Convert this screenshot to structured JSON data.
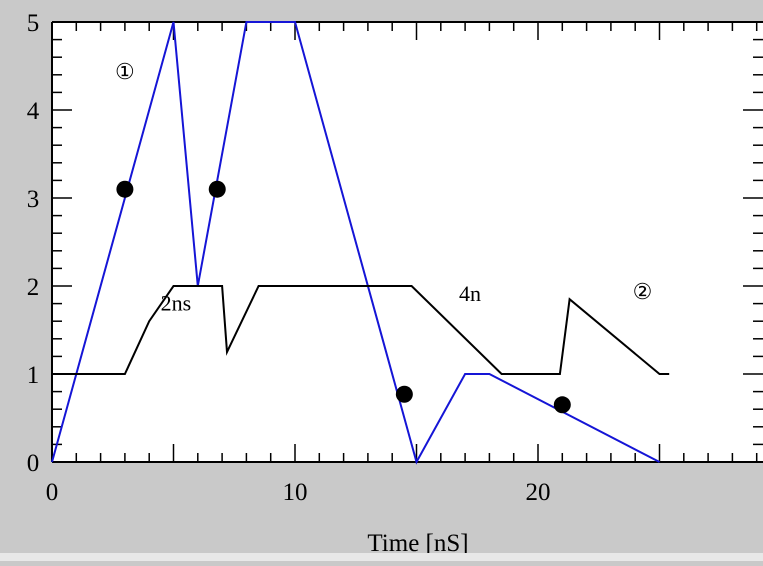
{
  "chart_data": {
    "type": "line",
    "xlabel": "Time [nS]",
    "ylabel": "",
    "xlim": [
      0,
      29.3
    ],
    "ylim": [
      0,
      5
    ],
    "x_ticks": [
      0,
      10,
      20
    ],
    "y_ticks": [
      0,
      1,
      2,
      3,
      4,
      5
    ],
    "grid": false,
    "series": [
      {
        "color": "#1515d6",
        "x": [
          0,
          5,
          6,
          8,
          10,
          15,
          17,
          18,
          25
        ],
        "y": [
          0,
          5,
          2,
          5,
          5,
          0,
          1,
          1,
          0
        ]
      },
      {
        "color": "#000000",
        "x": [
          0,
          3,
          4,
          5,
          7,
          7.2,
          8.5,
          14.8,
          18.5,
          20.9,
          21.3,
          25,
          25.4
        ],
        "y": [
          1,
          1,
          1.6,
          2,
          2,
          1.25,
          2,
          2,
          1,
          1,
          1.85,
          1,
          1
        ]
      }
    ],
    "markers": [
      {
        "x": 3.0,
        "y": 3.1
      },
      {
        "x": 6.8,
        "y": 3.1
      },
      {
        "x": 14.5,
        "y": 0.77
      },
      {
        "x": 21.0,
        "y": 0.65
      }
    ],
    "annotations": [
      {
        "text": "①",
        "x": 3.0,
        "y": 4.35
      },
      {
        "text": "2ns",
        "x": 5.1,
        "y": 1.72
      },
      {
        "text": "4n",
        "x": 17.2,
        "y": 1.83
      },
      {
        "text": "②",
        "x": 24.3,
        "y": 1.85
      }
    ]
  }
}
